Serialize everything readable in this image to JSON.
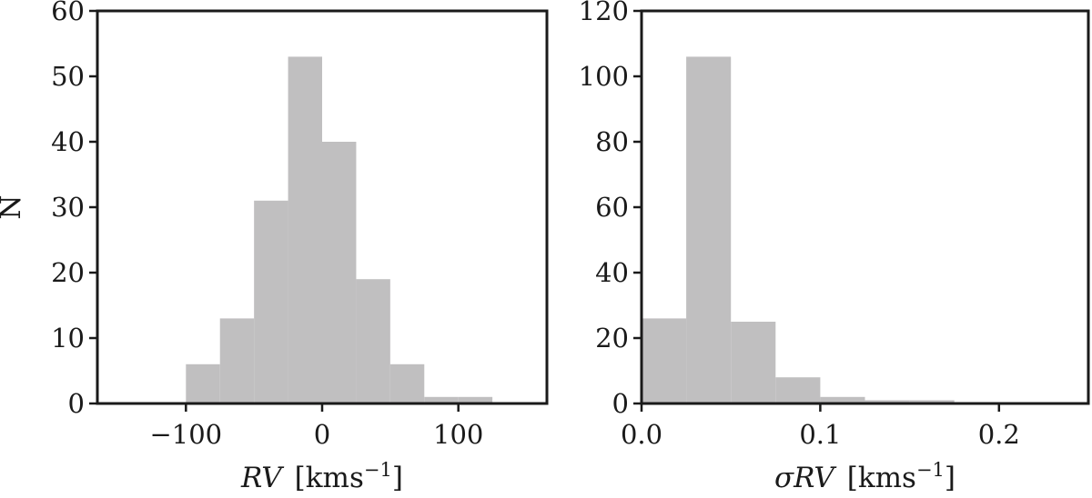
{
  "chart_data": [
    {
      "type": "bar",
      "panel": "left",
      "xlabel_italic": "RV",
      "xlabel_unit": "[kms",
      "xlabel_exp": "−1",
      "xlabel_close": "]",
      "ylabel": "N",
      "xlim": [
        -165,
        165
      ],
      "ylim": [
        0,
        60
      ],
      "xticks": [
        -100,
        0,
        100
      ],
      "xtick_labels": [
        "−100",
        "0",
        "100"
      ],
      "yticks": [
        0,
        10,
        20,
        30,
        40,
        50,
        60
      ],
      "ytick_labels": [
        "0",
        "10",
        "20",
        "30",
        "40",
        "50",
        "60"
      ],
      "bar_color": "#c0bfc0",
      "bins": [
        {
          "x0": -100,
          "x1": -75,
          "value": 6
        },
        {
          "x0": -75,
          "x1": -50,
          "value": 13
        },
        {
          "x0": -50,
          "x1": -25,
          "value": 31
        },
        {
          "x0": -25,
          "x1": 0,
          "value": 53
        },
        {
          "x0": 0,
          "x1": 25,
          "value": 40
        },
        {
          "x0": 25,
          "x1": 50,
          "value": 19
        },
        {
          "x0": 50,
          "x1": 75,
          "value": 6
        },
        {
          "x0": 75,
          "x1": 100,
          "value": 1
        },
        {
          "x0": 100,
          "x1": 125,
          "value": 1
        }
      ]
    },
    {
      "type": "bar",
      "panel": "right",
      "xlabel_italic": "σRV",
      "xlabel_unit": "[kms",
      "xlabel_exp": "−1",
      "xlabel_close": "]",
      "ylabel": "",
      "xlim": [
        0,
        0.25
      ],
      "ylim": [
        0,
        120
      ],
      "xticks": [
        0.0,
        0.1,
        0.2
      ],
      "xtick_labels": [
        "0.0",
        "0.1",
        "0.2"
      ],
      "yticks": [
        0,
        20,
        40,
        60,
        80,
        100,
        120
      ],
      "ytick_labels": [
        "0",
        "20",
        "40",
        "60",
        "80",
        "100",
        "120"
      ],
      "bar_color": "#c0bfc0",
      "bins": [
        {
          "x0": 0.0,
          "x1": 0.025,
          "value": 26
        },
        {
          "x0": 0.025,
          "x1": 0.05,
          "value": 106
        },
        {
          "x0": 0.05,
          "x1": 0.075,
          "value": 25
        },
        {
          "x0": 0.075,
          "x1": 0.1,
          "value": 8
        },
        {
          "x0": 0.1,
          "x1": 0.125,
          "value": 2
        },
        {
          "x0": 0.125,
          "x1": 0.15,
          "value": 1
        },
        {
          "x0": 0.15,
          "x1": 0.175,
          "value": 1
        },
        {
          "x0": 0.175,
          "x1": 0.2,
          "value": 0
        },
        {
          "x0": 0.2,
          "x1": 0.225,
          "value": 0
        },
        {
          "x0": 0.225,
          "x1": 0.25,
          "value": 0
        }
      ]
    }
  ]
}
